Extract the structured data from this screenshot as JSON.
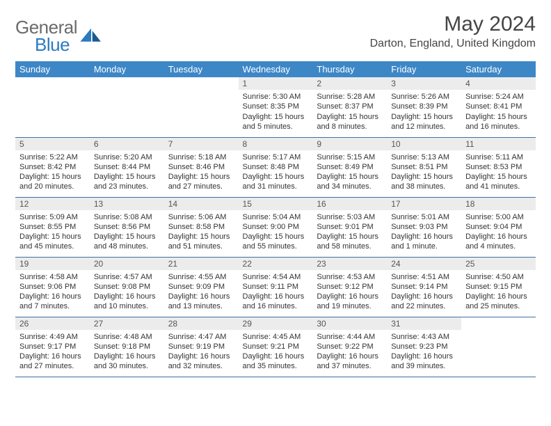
{
  "logo": {
    "text1": "General",
    "text2": "Blue"
  },
  "title": "May 2024",
  "location": "Darton, England, United Kingdom",
  "colors": {
    "header_bg": "#3d87c7",
    "header_text": "#ffffff",
    "daynum_bg": "#ececec",
    "border": "#3d6fa0",
    "logo_gray": "#6a6a6a",
    "logo_blue": "#2a7bbf"
  },
  "dow": [
    "Sunday",
    "Monday",
    "Tuesday",
    "Wednesday",
    "Thursday",
    "Friday",
    "Saturday"
  ],
  "weeks": [
    [
      {
        "n": "",
        "sr": "",
        "ss": "",
        "dl": ""
      },
      {
        "n": "",
        "sr": "",
        "ss": "",
        "dl": ""
      },
      {
        "n": "",
        "sr": "",
        "ss": "",
        "dl": ""
      },
      {
        "n": "1",
        "sr": "Sunrise: 5:30 AM",
        "ss": "Sunset: 8:35 PM",
        "dl": "Daylight: 15 hours and 5 minutes."
      },
      {
        "n": "2",
        "sr": "Sunrise: 5:28 AM",
        "ss": "Sunset: 8:37 PM",
        "dl": "Daylight: 15 hours and 8 minutes."
      },
      {
        "n": "3",
        "sr": "Sunrise: 5:26 AM",
        "ss": "Sunset: 8:39 PM",
        "dl": "Daylight: 15 hours and 12 minutes."
      },
      {
        "n": "4",
        "sr": "Sunrise: 5:24 AM",
        "ss": "Sunset: 8:41 PM",
        "dl": "Daylight: 15 hours and 16 minutes."
      }
    ],
    [
      {
        "n": "5",
        "sr": "Sunrise: 5:22 AM",
        "ss": "Sunset: 8:42 PM",
        "dl": "Daylight: 15 hours and 20 minutes."
      },
      {
        "n": "6",
        "sr": "Sunrise: 5:20 AM",
        "ss": "Sunset: 8:44 PM",
        "dl": "Daylight: 15 hours and 23 minutes."
      },
      {
        "n": "7",
        "sr": "Sunrise: 5:18 AM",
        "ss": "Sunset: 8:46 PM",
        "dl": "Daylight: 15 hours and 27 minutes."
      },
      {
        "n": "8",
        "sr": "Sunrise: 5:17 AM",
        "ss": "Sunset: 8:48 PM",
        "dl": "Daylight: 15 hours and 31 minutes."
      },
      {
        "n": "9",
        "sr": "Sunrise: 5:15 AM",
        "ss": "Sunset: 8:49 PM",
        "dl": "Daylight: 15 hours and 34 minutes."
      },
      {
        "n": "10",
        "sr": "Sunrise: 5:13 AM",
        "ss": "Sunset: 8:51 PM",
        "dl": "Daylight: 15 hours and 38 minutes."
      },
      {
        "n": "11",
        "sr": "Sunrise: 5:11 AM",
        "ss": "Sunset: 8:53 PM",
        "dl": "Daylight: 15 hours and 41 minutes."
      }
    ],
    [
      {
        "n": "12",
        "sr": "Sunrise: 5:09 AM",
        "ss": "Sunset: 8:55 PM",
        "dl": "Daylight: 15 hours and 45 minutes."
      },
      {
        "n": "13",
        "sr": "Sunrise: 5:08 AM",
        "ss": "Sunset: 8:56 PM",
        "dl": "Daylight: 15 hours and 48 minutes."
      },
      {
        "n": "14",
        "sr": "Sunrise: 5:06 AM",
        "ss": "Sunset: 8:58 PM",
        "dl": "Daylight: 15 hours and 51 minutes."
      },
      {
        "n": "15",
        "sr": "Sunrise: 5:04 AM",
        "ss": "Sunset: 9:00 PM",
        "dl": "Daylight: 15 hours and 55 minutes."
      },
      {
        "n": "16",
        "sr": "Sunrise: 5:03 AM",
        "ss": "Sunset: 9:01 PM",
        "dl": "Daylight: 15 hours and 58 minutes."
      },
      {
        "n": "17",
        "sr": "Sunrise: 5:01 AM",
        "ss": "Sunset: 9:03 PM",
        "dl": "Daylight: 16 hours and 1 minute."
      },
      {
        "n": "18",
        "sr": "Sunrise: 5:00 AM",
        "ss": "Sunset: 9:04 PM",
        "dl": "Daylight: 16 hours and 4 minutes."
      }
    ],
    [
      {
        "n": "19",
        "sr": "Sunrise: 4:58 AM",
        "ss": "Sunset: 9:06 PM",
        "dl": "Daylight: 16 hours and 7 minutes."
      },
      {
        "n": "20",
        "sr": "Sunrise: 4:57 AM",
        "ss": "Sunset: 9:08 PM",
        "dl": "Daylight: 16 hours and 10 minutes."
      },
      {
        "n": "21",
        "sr": "Sunrise: 4:55 AM",
        "ss": "Sunset: 9:09 PM",
        "dl": "Daylight: 16 hours and 13 minutes."
      },
      {
        "n": "22",
        "sr": "Sunrise: 4:54 AM",
        "ss": "Sunset: 9:11 PM",
        "dl": "Daylight: 16 hours and 16 minutes."
      },
      {
        "n": "23",
        "sr": "Sunrise: 4:53 AM",
        "ss": "Sunset: 9:12 PM",
        "dl": "Daylight: 16 hours and 19 minutes."
      },
      {
        "n": "24",
        "sr": "Sunrise: 4:51 AM",
        "ss": "Sunset: 9:14 PM",
        "dl": "Daylight: 16 hours and 22 minutes."
      },
      {
        "n": "25",
        "sr": "Sunrise: 4:50 AM",
        "ss": "Sunset: 9:15 PM",
        "dl": "Daylight: 16 hours and 25 minutes."
      }
    ],
    [
      {
        "n": "26",
        "sr": "Sunrise: 4:49 AM",
        "ss": "Sunset: 9:17 PM",
        "dl": "Daylight: 16 hours and 27 minutes."
      },
      {
        "n": "27",
        "sr": "Sunrise: 4:48 AM",
        "ss": "Sunset: 9:18 PM",
        "dl": "Daylight: 16 hours and 30 minutes."
      },
      {
        "n": "28",
        "sr": "Sunrise: 4:47 AM",
        "ss": "Sunset: 9:19 PM",
        "dl": "Daylight: 16 hours and 32 minutes."
      },
      {
        "n": "29",
        "sr": "Sunrise: 4:45 AM",
        "ss": "Sunset: 9:21 PM",
        "dl": "Daylight: 16 hours and 35 minutes."
      },
      {
        "n": "30",
        "sr": "Sunrise: 4:44 AM",
        "ss": "Sunset: 9:22 PM",
        "dl": "Daylight: 16 hours and 37 minutes."
      },
      {
        "n": "31",
        "sr": "Sunrise: 4:43 AM",
        "ss": "Sunset: 9:23 PM",
        "dl": "Daylight: 16 hours and 39 minutes."
      },
      {
        "n": "",
        "sr": "",
        "ss": "",
        "dl": ""
      }
    ]
  ]
}
